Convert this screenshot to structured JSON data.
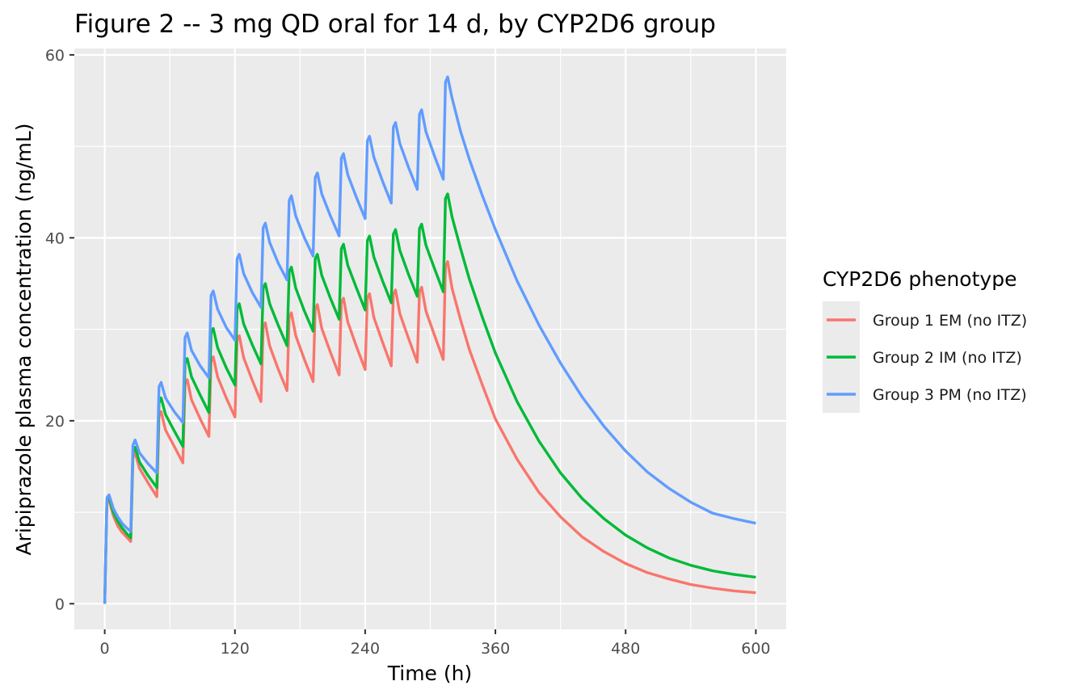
{
  "chart_data": {
    "type": "line",
    "title": "Figure 2 -- 3 mg QD oral for 14 d, by CYP2D6 group",
    "xlabel": "Time (h)",
    "ylabel": "Aripiprazole plasma concentration (ng/mL)",
    "xlim": [
      -28,
      628
    ],
    "ylim": [
      -2.8,
      60.7
    ],
    "x_ticks": [
      0,
      120,
      240,
      360,
      480,
      600
    ],
    "y_ticks": [
      0,
      20,
      40,
      60
    ],
    "grid": true,
    "legend": {
      "title": "CYP2D6 phenotype",
      "position": "right"
    },
    "series": [
      {
        "name": "Group 1 EM (no ITZ)",
        "color": "#F8766D",
        "points": [
          [
            0,
            0
          ],
          [
            2,
            11.1
          ],
          [
            4,
            11.3
          ],
          [
            8,
            9.6
          ],
          [
            12,
            8.5
          ],
          [
            16,
            7.8
          ],
          [
            20,
            7.3
          ],
          [
            24,
            6.8
          ],
          [
            26,
            16.0
          ],
          [
            28,
            16.5
          ],
          [
            32,
            14.8
          ],
          [
            40,
            13.2
          ],
          [
            48,
            11.7
          ],
          [
            50,
            20.5
          ],
          [
            52,
            21.0
          ],
          [
            56,
            19.0
          ],
          [
            64,
            17.2
          ],
          [
            72,
            15.4
          ],
          [
            74,
            24.0
          ],
          [
            76,
            24.5
          ],
          [
            80,
            22.3
          ],
          [
            88,
            20.2
          ],
          [
            96,
            18.3
          ],
          [
            98,
            26.5
          ],
          [
            100,
            27.0
          ],
          [
            104,
            24.8
          ],
          [
            112,
            22.5
          ],
          [
            120,
            20.4
          ],
          [
            122,
            28.8
          ],
          [
            124,
            29.3
          ],
          [
            128,
            26.9
          ],
          [
            136,
            24.4
          ],
          [
            144,
            22.1
          ],
          [
            146,
            30.2
          ],
          [
            148,
            30.7
          ],
          [
            152,
            28.2
          ],
          [
            160,
            25.6
          ],
          [
            168,
            23.3
          ],
          [
            170,
            31.3
          ],
          [
            172,
            31.8
          ],
          [
            176,
            29.3
          ],
          [
            184,
            26.7
          ],
          [
            192,
            24.3
          ],
          [
            194,
            32.2
          ],
          [
            196,
            32.7
          ],
          [
            200,
            30.1
          ],
          [
            208,
            27.5
          ],
          [
            216,
            25.0
          ],
          [
            218,
            32.9
          ],
          [
            220,
            33.4
          ],
          [
            224,
            30.8
          ],
          [
            232,
            28.1
          ],
          [
            240,
            25.6
          ],
          [
            242,
            33.4
          ],
          [
            244,
            33.9
          ],
          [
            248,
            31.3
          ],
          [
            256,
            28.6
          ],
          [
            264,
            26.0
          ],
          [
            266,
            33.8
          ],
          [
            268,
            34.3
          ],
          [
            272,
            31.7
          ],
          [
            280,
            29.0
          ],
          [
            288,
            26.4
          ],
          [
            290,
            34.1
          ],
          [
            292,
            34.6
          ],
          [
            296,
            32.0
          ],
          [
            304,
            29.3
          ],
          [
            312,
            26.7
          ],
          [
            314,
            36.9
          ],
          [
            316,
            37.4
          ],
          [
            320,
            34.5
          ],
          [
            328,
            31.0
          ],
          [
            336,
            27.8
          ],
          [
            348,
            23.9
          ],
          [
            360,
            20.2
          ],
          [
            380,
            15.8
          ],
          [
            400,
            12.2
          ],
          [
            420,
            9.5
          ],
          [
            440,
            7.3
          ],
          [
            460,
            5.7
          ],
          [
            480,
            4.4
          ],
          [
            500,
            3.4
          ],
          [
            520,
            2.7
          ],
          [
            540,
            2.1
          ],
          [
            560,
            1.7
          ],
          [
            580,
            1.4
          ],
          [
            600,
            1.2
          ]
        ]
      },
      {
        "name": "Group 2 IM (no ITZ)",
        "color": "#00BA38",
        "points": [
          [
            0,
            0
          ],
          [
            2,
            11.3
          ],
          [
            4,
            11.6
          ],
          [
            8,
            10.0
          ],
          [
            12,
            9.0
          ],
          [
            16,
            8.3
          ],
          [
            20,
            7.7
          ],
          [
            24,
            7.2
          ],
          [
            26,
            16.5
          ],
          [
            28,
            17.1
          ],
          [
            32,
            15.5
          ],
          [
            40,
            14.0
          ],
          [
            48,
            12.7
          ],
          [
            50,
            22.0
          ],
          [
            52,
            22.5
          ],
          [
            56,
            20.7
          ],
          [
            64,
            18.9
          ],
          [
            72,
            17.2
          ],
          [
            74,
            26.3
          ],
          [
            76,
            26.8
          ],
          [
            80,
            24.8
          ],
          [
            88,
            22.8
          ],
          [
            96,
            20.9
          ],
          [
            98,
            29.6
          ],
          [
            100,
            30.1
          ],
          [
            104,
            28.0
          ],
          [
            112,
            25.8
          ],
          [
            120,
            23.9
          ],
          [
            122,
            32.3
          ],
          [
            124,
            32.8
          ],
          [
            128,
            30.6
          ],
          [
            136,
            28.3
          ],
          [
            144,
            26.2
          ],
          [
            146,
            34.5
          ],
          [
            148,
            35.0
          ],
          [
            152,
            32.8
          ],
          [
            160,
            30.4
          ],
          [
            168,
            28.2
          ],
          [
            170,
            36.3
          ],
          [
            172,
            36.8
          ],
          [
            176,
            34.5
          ],
          [
            184,
            32.0
          ],
          [
            192,
            29.8
          ],
          [
            194,
            37.7
          ],
          [
            196,
            38.2
          ],
          [
            200,
            35.9
          ],
          [
            208,
            33.4
          ],
          [
            216,
            31.1
          ],
          [
            218,
            38.8
          ],
          [
            220,
            39.3
          ],
          [
            224,
            37.0
          ],
          [
            232,
            34.5
          ],
          [
            240,
            32.1
          ],
          [
            242,
            39.7
          ],
          [
            244,
            40.2
          ],
          [
            248,
            37.9
          ],
          [
            256,
            35.3
          ],
          [
            264,
            32.9
          ],
          [
            266,
            40.4
          ],
          [
            268,
            40.9
          ],
          [
            272,
            38.6
          ],
          [
            280,
            36.0
          ],
          [
            288,
            33.6
          ],
          [
            290,
            41.0
          ],
          [
            292,
            41.5
          ],
          [
            296,
            39.2
          ],
          [
            304,
            36.6
          ],
          [
            312,
            34.1
          ],
          [
            314,
            44.3
          ],
          [
            316,
            44.8
          ],
          [
            320,
            42.3
          ],
          [
            328,
            38.8
          ],
          [
            336,
            35.5
          ],
          [
            348,
            31.3
          ],
          [
            360,
            27.4
          ],
          [
            380,
            22.1
          ],
          [
            400,
            17.8
          ],
          [
            420,
            14.3
          ],
          [
            440,
            11.5
          ],
          [
            460,
            9.3
          ],
          [
            480,
            7.5
          ],
          [
            500,
            6.1
          ],
          [
            520,
            5.0
          ],
          [
            540,
            4.2
          ],
          [
            560,
            3.6
          ],
          [
            580,
            3.2
          ],
          [
            600,
            2.9
          ]
        ]
      },
      {
        "name": "Group 3 PM (no ITZ)",
        "color": "#619CFF",
        "points": [
          [
            0,
            0
          ],
          [
            2,
            11.6
          ],
          [
            4,
            11.9
          ],
          [
            8,
            10.4
          ],
          [
            12,
            9.5
          ],
          [
            16,
            8.8
          ],
          [
            20,
            8.3
          ],
          [
            24,
            7.9
          ],
          [
            26,
            17.3
          ],
          [
            28,
            17.9
          ],
          [
            32,
            16.5
          ],
          [
            40,
            15.3
          ],
          [
            48,
            14.3
          ],
          [
            50,
            23.7
          ],
          [
            52,
            24.2
          ],
          [
            56,
            22.5
          ],
          [
            64,
            21.0
          ],
          [
            72,
            19.8
          ],
          [
            74,
            29.1
          ],
          [
            76,
            29.6
          ],
          [
            80,
            27.7
          ],
          [
            88,
            26.0
          ],
          [
            96,
            24.7
          ],
          [
            98,
            33.7
          ],
          [
            100,
            34.2
          ],
          [
            104,
            32.2
          ],
          [
            112,
            30.2
          ],
          [
            120,
            28.8
          ],
          [
            122,
            37.7
          ],
          [
            124,
            38.2
          ],
          [
            128,
            36.1
          ],
          [
            136,
            34.0
          ],
          [
            144,
            32.4
          ],
          [
            146,
            41.1
          ],
          [
            148,
            41.6
          ],
          [
            152,
            39.5
          ],
          [
            160,
            37.2
          ],
          [
            168,
            35.4
          ],
          [
            170,
            44.1
          ],
          [
            172,
            44.6
          ],
          [
            176,
            42.4
          ],
          [
            184,
            40.0
          ],
          [
            192,
            38.0
          ],
          [
            194,
            46.6
          ],
          [
            196,
            47.1
          ],
          [
            200,
            44.8
          ],
          [
            208,
            42.4
          ],
          [
            216,
            40.2
          ],
          [
            218,
            48.7
          ],
          [
            220,
            49.2
          ],
          [
            224,
            46.9
          ],
          [
            232,
            44.4
          ],
          [
            240,
            42.1
          ],
          [
            242,
            50.6
          ],
          [
            244,
            51.1
          ],
          [
            248,
            48.8
          ],
          [
            256,
            46.2
          ],
          [
            264,
            43.8
          ],
          [
            266,
            52.1
          ],
          [
            268,
            52.6
          ],
          [
            272,
            50.3
          ],
          [
            280,
            47.7
          ],
          [
            288,
            45.3
          ],
          [
            290,
            53.5
          ],
          [
            292,
            54.0
          ],
          [
            296,
            51.6
          ],
          [
            304,
            48.9
          ],
          [
            312,
            46.4
          ],
          [
            314,
            57.0
          ],
          [
            316,
            57.6
          ],
          [
            320,
            55.3
          ],
          [
            328,
            51.6
          ],
          [
            336,
            48.6
          ],
          [
            348,
            44.6
          ],
          [
            360,
            40.9
          ],
          [
            380,
            35.3
          ],
          [
            400,
            30.5
          ],
          [
            420,
            26.3
          ],
          [
            440,
            22.6
          ],
          [
            460,
            19.4
          ],
          [
            480,
            16.7
          ],
          [
            500,
            14.4
          ],
          [
            520,
            12.6
          ],
          [
            540,
            11.1
          ],
          [
            560,
            9.9
          ],
          [
            580,
            9.3
          ],
          [
            600,
            8.8
          ]
        ]
      }
    ]
  }
}
